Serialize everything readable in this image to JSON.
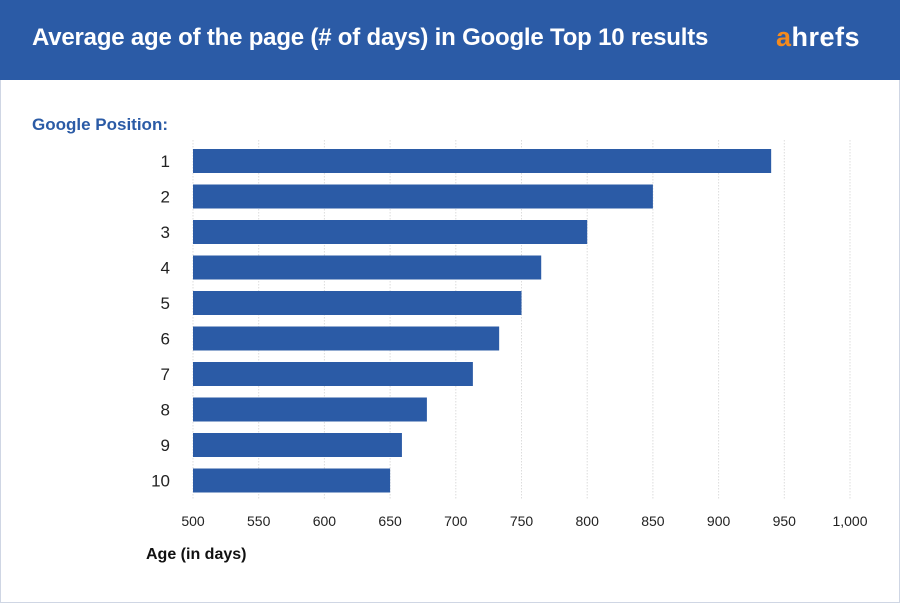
{
  "header": {
    "title": "Average age of the page (# of days) in Google Top 10 results",
    "logo_text": "ahrefs",
    "logo_accent": "a",
    "logo_rest": "hrefs"
  },
  "colors": {
    "header_bg": "#2b5ba6",
    "bar": "#2b5ba6",
    "logo_accent": "#f48a1d"
  },
  "chart_data": {
    "type": "bar",
    "orientation": "horizontal",
    "title": "Average age of the page (# of days) in Google Top 10 results",
    "ylabel": "Google Position:",
    "xlabel": "Age (in days)",
    "categories": [
      "1",
      "2",
      "3",
      "4",
      "5",
      "6",
      "7",
      "8",
      "9",
      "10"
    ],
    "values": [
      940,
      850,
      800,
      765,
      750,
      733,
      713,
      678,
      659,
      650
    ],
    "xlim": [
      500,
      1000
    ],
    "xticks": [
      "500",
      "550",
      "600",
      "650",
      "700",
      "750",
      "800",
      "850",
      "900",
      "950",
      "1,000"
    ],
    "grid": true
  }
}
